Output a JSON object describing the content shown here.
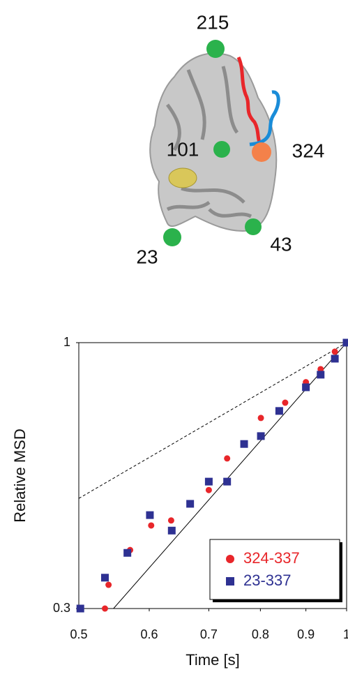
{
  "structure_labels": [
    "215",
    "101",
    "324",
    "23",
    "43"
  ],
  "chart_data": {
    "type": "scatter",
    "x_label": "Time [s]",
    "y_label": "Relative MSD",
    "xlim": [
      0.5,
      1
    ],
    "ylim": [
      0.3,
      1
    ],
    "xlog": true,
    "ylog": true,
    "xticks": [
      0.5,
      0.6,
      0.7,
      0.8,
      0.9,
      1
    ],
    "yticks": [
      0.3,
      1
    ],
    "legend": "bottom-right",
    "series": [
      {
        "name": "324-337",
        "color": "#e8262a",
        "marker": "circle",
        "x": [
          0.535,
          0.54,
          0.571,
          0.603,
          0.635,
          0.7,
          0.734,
          0.767,
          0.801,
          0.853,
          0.9,
          0.935,
          0.97,
          1
        ],
        "values": [
          0.3,
          0.334,
          0.391,
          0.437,
          0.447,
          0.513,
          0.592,
          0.632,
          0.711,
          0.762,
          0.836,
          0.887,
          0.96,
          1
        ]
      },
      {
        "name": "23-337",
        "color": "#2e3192",
        "marker": "square",
        "x": [
          0.502,
          0.535,
          0.567,
          0.601,
          0.636,
          0.667,
          0.7,
          0.734,
          0.767,
          0.801,
          0.84,
          0.9,
          0.935,
          0.97,
          1
        ],
        "values": [
          0.3,
          0.345,
          0.386,
          0.458,
          0.427,
          0.482,
          0.533,
          0.533,
          0.632,
          0.655,
          0.734,
          0.817,
          0.865,
          0.93,
          1
        ]
      }
    ],
    "lines": [
      {
        "x": [
          0.547,
          1
        ],
        "values": [
          0.3,
          1
        ],
        "dashed": false
      },
      {
        "x": [
          0.5,
          1
        ],
        "values": [
          0.494,
          1
        ],
        "dashed": true
      }
    ]
  }
}
